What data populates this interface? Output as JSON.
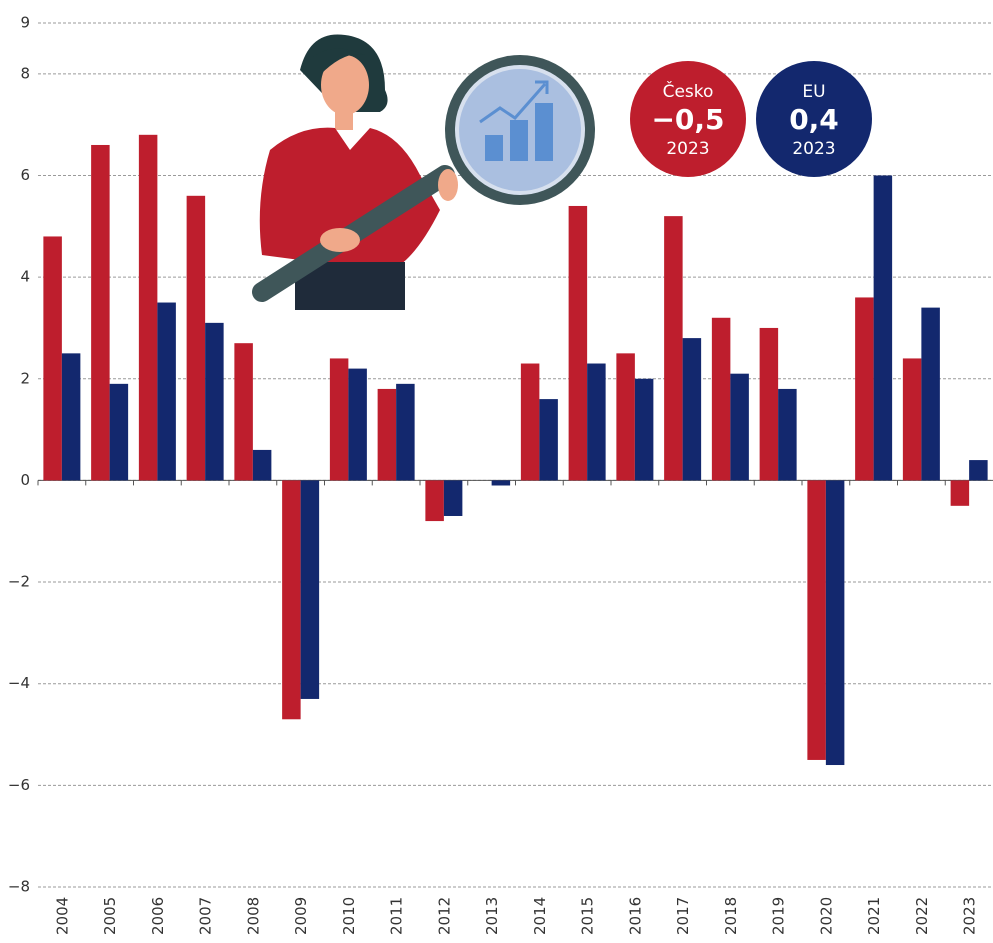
{
  "chart_data": {
    "type": "bar",
    "categories": [
      "2004",
      "2005",
      "2006",
      "2007",
      "2008",
      "2009",
      "2010",
      "2011",
      "2012",
      "2013",
      "2014",
      "2015",
      "2016",
      "2017",
      "2018",
      "2019",
      "2020",
      "2021",
      "2022",
      "2023"
    ],
    "series": [
      {
        "name": "Česko",
        "color": "#be1e2d",
        "values": [
          4.8,
          6.6,
          6.8,
          5.6,
          2.7,
          -4.7,
          2.4,
          1.8,
          -0.8,
          0,
          2.3,
          5.4,
          2.5,
          5.2,
          3.2,
          3.0,
          -5.5,
          3.6,
          2.4,
          -0.5
        ]
      },
      {
        "name": "EU",
        "color": "#13286e",
        "values": [
          2.5,
          1.9,
          3.5,
          3.1,
          0.6,
          -4.3,
          2.2,
          1.9,
          -0.7,
          -0.1,
          1.6,
          2.3,
          2.0,
          2.8,
          2.1,
          1.8,
          -5.6,
          6.0,
          3.4,
          0.4
        ]
      }
    ],
    "callouts": [
      {
        "label": "−0,5",
        "year": "2023"
      },
      {
        "label": "0,4",
        "year": "2023"
      }
    ],
    "ylim": [
      -8,
      9
    ],
    "yticks": [
      {
        "value": -8,
        "label": "−8"
      },
      {
        "value": -6,
        "label": "−6"
      },
      {
        "value": -4,
        "label": "−4"
      },
      {
        "value": -2,
        "label": "−2"
      },
      0,
      2,
      4,
      6,
      8,
      9
    ],
    "grid": true
  }
}
